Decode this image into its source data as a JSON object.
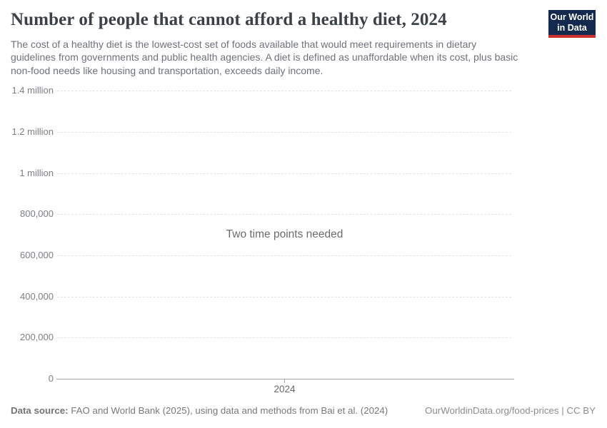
{
  "header": {
    "title": "Number of people that cannot afford a healthy diet, 2024",
    "subtitle": "The cost of a healthy diet is the lowest-cost set of foods available that would meet requirements in dietary guidelines from governments and public health agencies. A diet is defined as unaffordable when its cost, plus basic non-food needs like housing and transportation, exceeds daily income.",
    "logo": {
      "line1": "Our World",
      "line2": "in Data"
    }
  },
  "chart_data": {
    "type": "line",
    "title": "Number of people that cannot afford a healthy diet, 2024",
    "message": "Two time points needed",
    "series": [],
    "x_tick_labels": [
      "2024"
    ],
    "y_tick_labels": [
      "1.4 million",
      "1.2 million",
      "1 million",
      "800,000",
      "600,000",
      "400,000",
      "200,000",
      "0"
    ],
    "y_ticks": [
      1400000,
      1200000,
      1000000,
      800000,
      600000,
      400000,
      200000,
      0
    ],
    "ylim": [
      0,
      1400000
    ],
    "xlabel": "",
    "ylabel": "",
    "grid": "horizontal-dashed",
    "legend": "none",
    "note": "Empty plot: no data series drawn; placeholder message shown because two time points are needed"
  },
  "footer": {
    "source_label": "Data source:",
    "source_text": " FAO and World Bank (2025), using data and methods from Bai et al. (2024)",
    "attribution": "OurWorldinData.org/food-prices | CC BY"
  },
  "colors": {
    "title_text": "#3b4147",
    "subtitle_text": "#6e727a",
    "tick_label": "#7c7f84",
    "gridline": "#e3e3e4",
    "axis_line": "#a6a6a8",
    "message_text": "#6b6b6b",
    "logo_background": "#14294e",
    "logo_accent": "#cf2e31",
    "footer_text": "#77797e"
  }
}
